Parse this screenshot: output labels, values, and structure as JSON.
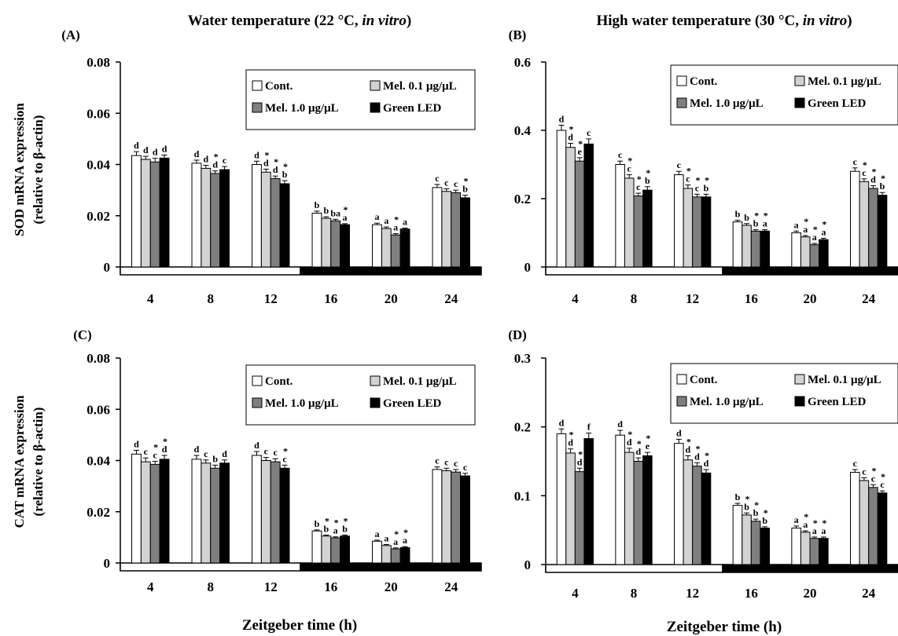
{
  "figure": {
    "titles": [
      "Water temperature (22 °C, ",
      "in vitro",
      ")",
      "High water temperature (30 °C, ",
      "in vitro",
      ")"
    ],
    "xlabel": "Zeitgeber time (h)",
    "ylabel_sod": [
      "SOD mRNA expression",
      "(relative to β-actin)"
    ],
    "ylabel_cat": [
      "CAT mRNA expression",
      "(relative to β-actin)"
    ]
  },
  "colors": {
    "Cont.": "#ffffff",
    "Mel. 0.1 μg/μL": "#d3d3d3",
    "Mel. 1.0 μg/μL": "#7f7f7f",
    "Green LED": "#000000"
  },
  "chart_data": [
    {
      "type": "bar",
      "panel": "(A)",
      "categories": [
        "4",
        "8",
        "12",
        "16",
        "20",
        "24"
      ],
      "ylim": [
        0,
        0.08
      ],
      "yticks": [
        "0",
        "0.02",
        "0.04",
        "0.06",
        "0.08"
      ],
      "series": [
        {
          "name": "Cont.",
          "values": [
            0.0435,
            0.0405,
            0.04,
            0.021,
            0.0165,
            0.031
          ],
          "err": [
            0.0015,
            0.0012,
            0.0013,
            0.0008,
            0.0006,
            0.0012
          ],
          "labels": [
            "d",
            "d",
            "d",
            "b",
            "a",
            "c"
          ]
        },
        {
          "name": "Mel. 0.1 μg/μL",
          "values": [
            0.042,
            0.0385,
            0.037,
            0.019,
            0.015,
            0.0295
          ],
          "err": [
            0.0012,
            0.0012,
            0.0012,
            0.0006,
            0.0006,
            0.001
          ],
          "labels": [
            "d",
            "d",
            "d*",
            "b",
            "a",
            "c"
          ]
        },
        {
          "name": "Mel. 1.0 μg/μL",
          "values": [
            0.041,
            0.0365,
            0.0345,
            0.018,
            0.0125,
            0.029
          ],
          "err": [
            0.0014,
            0.001,
            0.001,
            0.0006,
            0.0005,
            0.001
          ],
          "labels": [
            "d",
            "d*",
            "d*",
            "ba",
            "a*",
            "c"
          ]
        },
        {
          "name": "Green LED",
          "values": [
            0.0425,
            0.038,
            0.0325,
            0.0165,
            0.0148,
            0.027
          ],
          "err": [
            0.0012,
            0.0012,
            0.0012,
            0.0004,
            0.0004,
            0.001
          ],
          "labels": [
            "d",
            "c",
            "b*",
            "a*",
            "a",
            "b*"
          ]
        }
      ]
    },
    {
      "type": "bar",
      "panel": "(B)",
      "categories": [
        "4",
        "8",
        "12",
        "16",
        "20",
        "24"
      ],
      "ylim": [
        0,
        0.6
      ],
      "yticks": [
        "0",
        "0.2",
        "0.4",
        "0.6"
      ],
      "series": [
        {
          "name": "Cont.",
          "values": [
            0.4,
            0.3,
            0.27,
            0.132,
            0.1,
            0.28
          ],
          "err": [
            0.015,
            0.01,
            0.01,
            0.005,
            0.005,
            0.01
          ],
          "labels": [
            "d",
            "c",
            "c",
            "b",
            "a",
            "c"
          ]
        },
        {
          "name": "Mel. 0.1 μg/μL",
          "values": [
            0.35,
            0.26,
            0.23,
            0.122,
            0.088,
            0.25
          ],
          "err": [
            0.012,
            0.01,
            0.01,
            0.005,
            0.004,
            0.008
          ],
          "labels": [
            "d*",
            "c*",
            "c*",
            "b",
            "a*",
            "c*"
          ]
        },
        {
          "name": "Mel. 1.0 μg/μL",
          "values": [
            0.31,
            0.208,
            0.205,
            0.105,
            0.065,
            0.23
          ],
          "err": [
            0.01,
            0.008,
            0.008,
            0.004,
            0.004,
            0.008
          ],
          "labels": [
            "e*",
            "c*",
            "c*",
            "b*",
            "a*",
            "d*"
          ]
        },
        {
          "name": "Green LED",
          "values": [
            0.36,
            0.225,
            0.205,
            0.105,
            0.08,
            0.21
          ],
          "err": [
            0.015,
            0.01,
            0.008,
            0.004,
            0.004,
            0.008
          ],
          "labels": [
            "c",
            "b*",
            "b*",
            "a*",
            "a*",
            "b*"
          ]
        }
      ]
    },
    {
      "type": "bar",
      "panel": "(C)",
      "categories": [
        "4",
        "8",
        "12",
        "16",
        "20",
        "24"
      ],
      "ylim": [
        0,
        0.08
      ],
      "yticks": [
        "0",
        "0.02",
        "0.04",
        "0.06",
        "0.08"
      ],
      "series": [
        {
          "name": "Cont.",
          "values": [
            0.0425,
            0.0405,
            0.042,
            0.0125,
            0.0085,
            0.0365
          ],
          "err": [
            0.0015,
            0.0015,
            0.0015,
            0.0004,
            0.0004,
            0.001
          ],
          "labels": [
            "d",
            "d",
            "d",
            "b",
            "a",
            "c"
          ]
        },
        {
          "name": "Mel. 0.1 μg/μL",
          "values": [
            0.0395,
            0.039,
            0.04,
            0.0105,
            0.0068,
            0.036
          ],
          "err": [
            0.0015,
            0.0012,
            0.0012,
            0.0004,
            0.0004,
            0.001
          ],
          "labels": [
            "c",
            "c",
            "c",
            "b*",
            "a",
            "c"
          ]
        },
        {
          "name": "Mel. 1.0 μg/μL",
          "values": [
            0.0385,
            0.037,
            0.0395,
            0.0098,
            0.0055,
            0.0355
          ],
          "err": [
            0.0012,
            0.0012,
            0.0012,
            0.0004,
            0.0004,
            0.001
          ],
          "labels": [
            "c*",
            "b",
            "c",
            "a*",
            "a*",
            "c"
          ]
        },
        {
          "name": "Green LED",
          "values": [
            0.0405,
            0.039,
            0.037,
            0.0105,
            0.006,
            0.034
          ],
          "err": [
            0.0015,
            0.0012,
            0.0012,
            0.0004,
            0.0004,
            0.001
          ],
          "labels": [
            "d*",
            "d",
            "c*",
            "b*",
            "a*",
            "c"
          ]
        }
      ]
    },
    {
      "type": "bar",
      "panel": "(D)",
      "categories": [
        "4",
        "8",
        "12",
        "16",
        "20",
        "24"
      ],
      "ylim": [
        0,
        0.3
      ],
      "yticks": [
        "0",
        "0.1",
        "0.2",
        "0.3"
      ],
      "series": [
        {
          "name": "Cont.",
          "values": [
            0.19,
            0.188,
            0.176,
            0.086,
            0.053,
            0.134
          ],
          "err": [
            0.007,
            0.007,
            0.006,
            0.003,
            0.003,
            0.004
          ],
          "labels": [
            "d",
            "d",
            "d",
            "b",
            "a",
            "c"
          ]
        },
        {
          "name": "Mel. 0.1 μg/μL",
          "values": [
            0.162,
            0.163,
            0.152,
            0.072,
            0.047,
            0.122
          ],
          "err": [
            0.006,
            0.006,
            0.006,
            0.003,
            0.002,
            0.004
          ],
          "labels": [
            "d*",
            "d*",
            "d*",
            "b*",
            "a*",
            "c"
          ]
        },
        {
          "name": "Mel. 1.0 μg/μL",
          "values": [
            0.135,
            0.15,
            0.143,
            0.063,
            0.038,
            0.112
          ],
          "err": [
            0.005,
            0.005,
            0.005,
            0.003,
            0.002,
            0.004
          ],
          "labels": [
            "d*",
            "d*",
            "d*",
            "b*",
            "a*",
            "c*"
          ]
        },
        {
          "name": "Green LED",
          "values": [
            0.183,
            0.158,
            0.133,
            0.053,
            0.038,
            0.104
          ],
          "err": [
            0.008,
            0.005,
            0.005,
            0.002,
            0.002,
            0.003
          ],
          "labels": [
            "f",
            "e*",
            "d*",
            "b*",
            "a*",
            "c*"
          ]
        }
      ]
    }
  ]
}
